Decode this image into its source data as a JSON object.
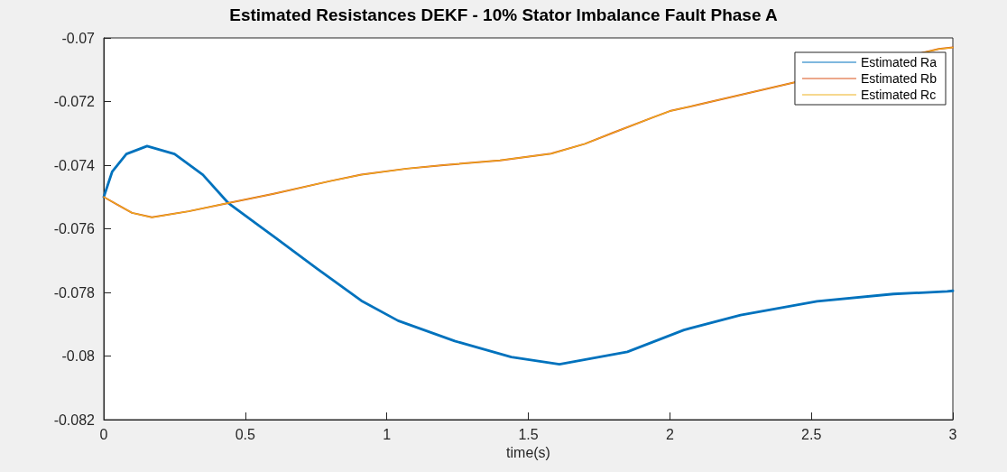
{
  "chart_data": {
    "type": "line",
    "title": "Estimated Resistances DEKF - 10% Stator Imbalance Fault Phase A",
    "xlabel": "time(s)",
    "series": [
      {
        "name": "Estimated Ra",
        "color": "#0072bd",
        "x": [
          0,
          0.03,
          0.08,
          0.153,
          0.25,
          0.35,
          0.44,
          0.6,
          0.75,
          0.91,
          1.04,
          1.24,
          1.44,
          1.61,
          1.85,
          2.05,
          2.25,
          2.52,
          2.79,
          2.98,
          3
        ],
        "values": [
          -0.075,
          -0.0742,
          -0.07365,
          -0.0734,
          -0.07365,
          -0.0743,
          -0.07519,
          -0.07624,
          -0.07723,
          -0.07826,
          -0.07889,
          -0.07953,
          -0.08003,
          -0.08026,
          -0.07987,
          -0.07918,
          -0.07871,
          -0.07828,
          -0.07805,
          -0.07797,
          -0.07795
        ]
      },
      {
        "name": "Estimated Rb",
        "color": "#d95319",
        "x": [
          0,
          0.05,
          0.1,
          0.17,
          0.3,
          0.44,
          0.6,
          0.8,
          0.91,
          1.07,
          1.2,
          1.4,
          1.58,
          1.7,
          1.8,
          1.94,
          2.0,
          2.1,
          2.95,
          3
        ],
        "values": [
          -0.075,
          -0.07525,
          -0.0755,
          -0.07564,
          -0.07545,
          -0.07519,
          -0.0749,
          -0.0745,
          -0.0743,
          -0.07411,
          -0.074,
          -0.07385,
          -0.07364,
          -0.07333,
          -0.07298,
          -0.0725,
          -0.0723,
          -0.0721,
          -0.07035,
          -0.0703
        ]
      },
      {
        "name": "Estimated Rc",
        "color": "#edb120",
        "x": [
          0,
          0.05,
          0.1,
          0.17,
          0.3,
          0.44,
          0.6,
          0.8,
          0.91,
          1.07,
          1.2,
          1.4,
          1.58,
          1.7,
          1.8,
          1.94,
          2.0,
          2.1,
          2.95,
          3
        ],
        "values": [
          -0.075,
          -0.07525,
          -0.0755,
          -0.07564,
          -0.07545,
          -0.07519,
          -0.0749,
          -0.0745,
          -0.0743,
          -0.07411,
          -0.074,
          -0.07385,
          -0.07364,
          -0.07333,
          -0.07298,
          -0.0725,
          -0.0723,
          -0.0721,
          -0.07035,
          -0.0703
        ]
      }
    ],
    "xlim": [
      0,
      3
    ],
    "xticks": [
      0,
      0.5,
      1,
      1.5,
      2,
      2.5,
      3
    ],
    "ylim": [
      -0.082,
      -0.07
    ],
    "yticks": [
      -0.082,
      -0.08,
      -0.078,
      -0.076,
      -0.074,
      -0.072,
      -0.07
    ],
    "grid": false,
    "legend": "top right",
    "marker": "none",
    "line_style": "solid"
  }
}
